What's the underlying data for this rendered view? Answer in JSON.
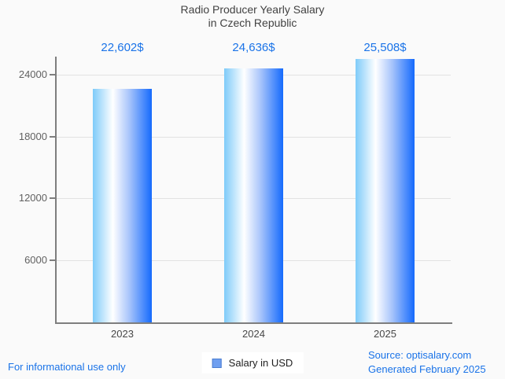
{
  "title": {
    "line1": "Radio Producer Yearly Salary",
    "line2": "in Czech Republic"
  },
  "chart_data": {
    "type": "bar",
    "categories": [
      "2023",
      "2024",
      "2025"
    ],
    "values": [
      22602,
      24636,
      25508
    ],
    "value_labels": [
      "22,602$",
      "24,636$",
      "25,508$"
    ],
    "series": [
      {
        "name": "Salary in USD",
        "values": [
          22602,
          24636,
          25508
        ]
      }
    ],
    "title": "Radio Producer Yearly Salary in Czech Republic",
    "xlabel": "",
    "ylabel": "",
    "yticks": [
      6000,
      12000,
      18000,
      24000
    ],
    "ylim": [
      0,
      25747
    ],
    "grid": true,
    "legend_position": "bottom",
    "bar_gradient": [
      "#7ecbf9",
      "#ffffff",
      "#156afc"
    ]
  },
  "legend": {
    "label": "Salary in USD",
    "swatch_color": "#6f9ff0"
  },
  "footer": {
    "left": "For informational use only",
    "source": "Source: optisalary.com",
    "generated": "Generated February 2025"
  },
  "colors": {
    "background": "#fafafa",
    "title_text": "#424242",
    "value_label": "#1a73e8",
    "axis": "#7e7e7e",
    "gridline": "#e2e2e2",
    "tick_label": "#616161",
    "footer_text": "#1a73e8"
  }
}
